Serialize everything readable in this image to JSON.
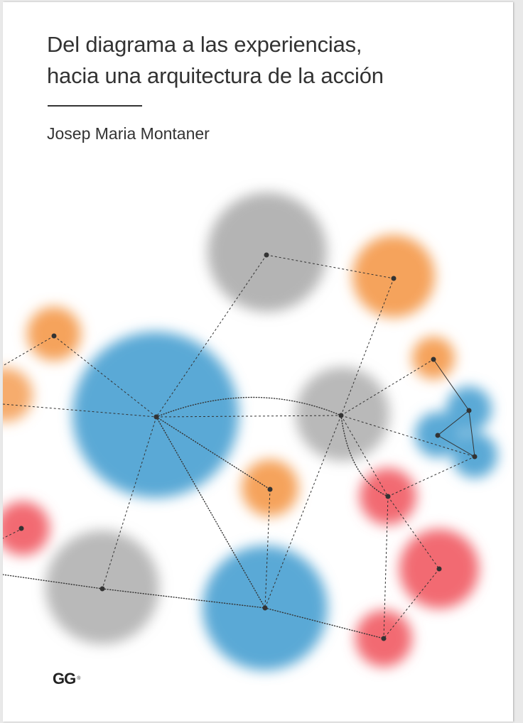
{
  "book": {
    "title_line_1": "Del diagrama a las experiencias,",
    "title_line_2": "hacia una arquitectura de la acción",
    "author": "Josep Maria Montaner",
    "publisher_logo": "GG",
    "publisher_mark": "®"
  },
  "colors": {
    "blue": "#5aa9d6",
    "gray": "#a7a7a7",
    "orange": "#f5a35c",
    "red": "#f26b72",
    "ink": "#333333",
    "node": "#333333"
  }
}
